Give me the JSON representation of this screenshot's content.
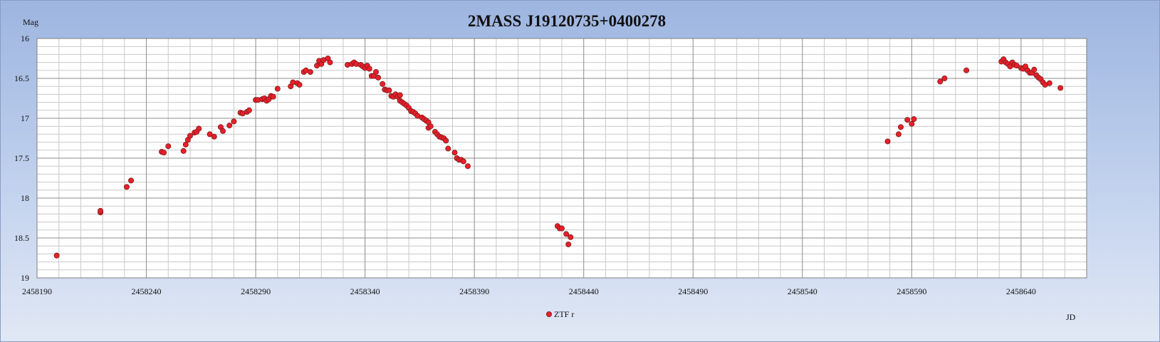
{
  "chart_data": {
    "type": "scatter",
    "title": "2MASS J19120735+0400278",
    "ylabel": "Mag",
    "xlabel": "JD",
    "xlim": [
      2458190,
      2458670
    ],
    "ylim": [
      19,
      16
    ],
    "y_inverted": true,
    "grid": true,
    "legend_position": "bottom-center",
    "x_ticks": [
      2458190,
      2458240,
      2458290,
      2458340,
      2458390,
      2458440,
      2458490,
      2458540,
      2458590,
      2458640
    ],
    "x_tick_labels": [
      "2458190",
      "2458240",
      "2458290",
      "2458340",
      "2458390",
      "2458440",
      "2458490",
      "2458540",
      "2458590",
      "2458640"
    ],
    "y_ticks": [
      16,
      16.5,
      17,
      17.5,
      18,
      18.5,
      19
    ],
    "y_tick_labels": [
      "16",
      "16.5",
      "17",
      "17.5",
      "18",
      "18.5",
      "19"
    ],
    "series": [
      {
        "name": "ZTF r",
        "color": "#e8202a",
        "points": [
          [
            2458199,
            18.72
          ],
          [
            2458219,
            18.18
          ],
          [
            2458219,
            18.16
          ],
          [
            2458231,
            17.86
          ],
          [
            2458233,
            17.78
          ],
          [
            2458247,
            17.42
          ],
          [
            2458248,
            17.43
          ],
          [
            2458250,
            17.35
          ],
          [
            2458257,
            17.41
          ],
          [
            2458258,
            17.33
          ],
          [
            2458259,
            17.27
          ],
          [
            2458260,
            17.22
          ],
          [
            2458262,
            17.18
          ],
          [
            2458263,
            17.17
          ],
          [
            2458264,
            17.13
          ],
          [
            2458269,
            17.2
          ],
          [
            2458271,
            17.23
          ],
          [
            2458274,
            17.11
          ],
          [
            2458275,
            17.16
          ],
          [
            2458278,
            17.09
          ],
          [
            2458280,
            17.04
          ],
          [
            2458283,
            16.93
          ],
          [
            2458284,
            16.94
          ],
          [
            2458286,
            16.92
          ],
          [
            2458287,
            16.9
          ],
          [
            2458290,
            16.77
          ],
          [
            2458291,
            16.77
          ],
          [
            2458293,
            16.76
          ],
          [
            2458294,
            16.75
          ],
          [
            2458295,
            16.78
          ],
          [
            2458296,
            16.76
          ],
          [
            2458297,
            16.72
          ],
          [
            2458298,
            16.73
          ],
          [
            2458300,
            16.63
          ],
          [
            2458306,
            16.6
          ],
          [
            2458307,
            16.55
          ],
          [
            2458309,
            16.56
          ],
          [
            2458310,
            16.58
          ],
          [
            2458312,
            16.42
          ],
          [
            2458313,
            16.4
          ],
          [
            2458315,
            16.42
          ],
          [
            2458318,
            16.34
          ],
          [
            2458319,
            16.28
          ],
          [
            2458320,
            16.32
          ],
          [
            2458321,
            16.27
          ],
          [
            2458323,
            16.25
          ],
          [
            2458324,
            16.3
          ],
          [
            2458332,
            16.33
          ],
          [
            2458334,
            16.32
          ],
          [
            2458335,
            16.3
          ],
          [
            2458336,
            16.32
          ],
          [
            2458338,
            16.33
          ],
          [
            2458339,
            16.35
          ],
          [
            2458340,
            16.37
          ],
          [
            2458341,
            16.34
          ],
          [
            2458342,
            16.38
          ],
          [
            2458343,
            16.47
          ],
          [
            2458344,
            16.47
          ],
          [
            2458345,
            16.42
          ],
          [
            2458346,
            16.49
          ],
          [
            2458348,
            16.57
          ],
          [
            2458349,
            16.64
          ],
          [
            2458350,
            16.65
          ],
          [
            2458351,
            16.65
          ],
          [
            2458352,
            16.72
          ],
          [
            2458353,
            16.73
          ],
          [
            2458354,
            16.7
          ],
          [
            2458355,
            16.73
          ],
          [
            2458356,
            16.71
          ],
          [
            2458356,
            16.78
          ],
          [
            2458357,
            16.8
          ],
          [
            2458358,
            16.82
          ],
          [
            2458359,
            16.84
          ],
          [
            2458360,
            16.87
          ],
          [
            2458361,
            16.91
          ],
          [
            2458362,
            16.92
          ],
          [
            2458363,
            16.94
          ],
          [
            2458364,
            16.97
          ],
          [
            2458366,
            16.99
          ],
          [
            2458367,
            17.01
          ],
          [
            2458368,
            17.03
          ],
          [
            2458369,
            17.05
          ],
          [
            2458369,
            17.12
          ],
          [
            2458370,
            17.1
          ],
          [
            2458372,
            17.17
          ],
          [
            2458373,
            17.2
          ],
          [
            2458374,
            17.23
          ],
          [
            2458375,
            17.24
          ],
          [
            2458376,
            17.25
          ],
          [
            2458377,
            17.28
          ],
          [
            2458378,
            17.38
          ],
          [
            2458381,
            17.43
          ],
          [
            2458382,
            17.5
          ],
          [
            2458383,
            17.52
          ],
          [
            2458384,
            17.52
          ],
          [
            2458385,
            17.54
          ],
          [
            2458387,
            17.6
          ],
          [
            2458428,
            18.35
          ],
          [
            2458429,
            18.38
          ],
          [
            2458430,
            18.38
          ],
          [
            2458432,
            18.45
          ],
          [
            2458433,
            18.58
          ],
          [
            2458434,
            18.49
          ],
          [
            2458579,
            17.29
          ],
          [
            2458584,
            17.2
          ],
          [
            2458585,
            17.11
          ],
          [
            2458588,
            17.02
          ],
          [
            2458590,
            17.07
          ],
          [
            2458591,
            17.01
          ],
          [
            2458603,
            16.54
          ],
          [
            2458605,
            16.5
          ],
          [
            2458615,
            16.4
          ],
          [
            2458631,
            16.29
          ],
          [
            2458632,
            16.26
          ],
          [
            2458633,
            16.3
          ],
          [
            2458634,
            16.32
          ],
          [
            2458635,
            16.35
          ],
          [
            2458636,
            16.3
          ],
          [
            2458637,
            16.33
          ],
          [
            2458638,
            16.34
          ],
          [
            2458640,
            16.37
          ],
          [
            2458641,
            16.38
          ],
          [
            2458642,
            16.35
          ],
          [
            2458643,
            16.4
          ],
          [
            2458644,
            16.43
          ],
          [
            2458645,
            16.43
          ],
          [
            2458646,
            16.39
          ],
          [
            2458647,
            16.46
          ],
          [
            2458648,
            16.49
          ],
          [
            2458649,
            16.51
          ],
          [
            2458650,
            16.55
          ],
          [
            2458651,
            16.58
          ],
          [
            2458653,
            16.56
          ],
          [
            2458658,
            16.62
          ]
        ]
      }
    ]
  }
}
